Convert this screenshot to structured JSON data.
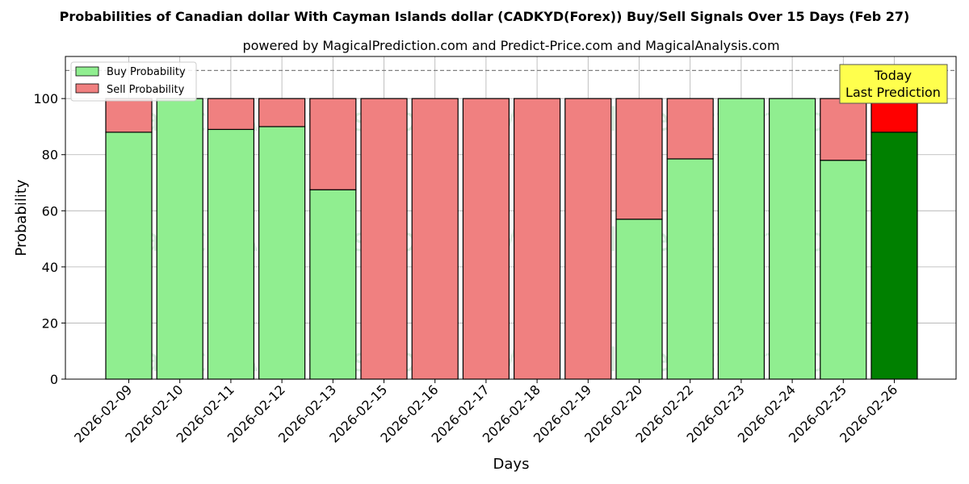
{
  "chart_data": {
    "type": "bar",
    "stacked": true,
    "title": "Probabilities of Canadian dollar With Cayman Islands dollar (CADKYD(Forex)) Buy/Sell Signals Over 15 Days (Feb 27)",
    "subtitle": "powered by MagicalPrediction.com and Predict-Price.com and MagicalAnalysis.com",
    "xlabel": "Days",
    "ylabel": "Probability",
    "ylim": [
      0,
      115
    ],
    "yticks": [
      0,
      20,
      40,
      60,
      80,
      100
    ],
    "grid": true,
    "legend_position": "top-left",
    "reference_line": 110,
    "categories": [
      "2026-02-09",
      "2026-02-10",
      "2026-02-11",
      "2026-02-12",
      "2026-02-13",
      "2026-02-15",
      "2026-02-16",
      "2026-02-17",
      "2026-02-18",
      "2026-02-19",
      "2026-02-20",
      "2026-02-22",
      "2026-02-23",
      "2026-02-24",
      "2026-02-25",
      "2026-02-26"
    ],
    "series": [
      {
        "name": "Buy Probability",
        "color": "#90ee90",
        "highlight_color": "#008000",
        "values": [
          88,
          100,
          89,
          90,
          67.5,
          0,
          0,
          0,
          0,
          0,
          57,
          78.5,
          100,
          100,
          78,
          88
        ]
      },
      {
        "name": "Sell Probability",
        "color": "#f08080",
        "highlight_color": "#ff0000",
        "values": [
          12,
          0,
          11,
          10,
          32.5,
          100,
          100,
          100,
          100,
          100,
          43,
          21.5,
          0,
          0,
          22,
          12
        ]
      }
    ],
    "highlight_index": 15,
    "annotation": {
      "lines": [
        "Today",
        "Last Prediction"
      ],
      "bg_color": "#ffff4d"
    },
    "watermarks": [
      "MagicalAnalysis.com",
      "MagicalPrediction.com"
    ]
  }
}
